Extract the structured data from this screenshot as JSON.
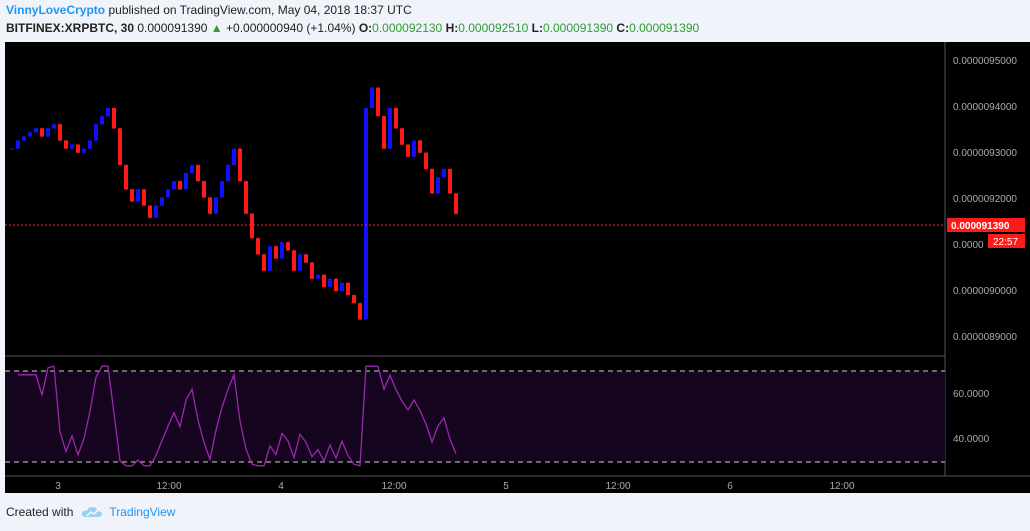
{
  "header": {
    "author": "VinnyLoveCrypto",
    "published_text": "published on TradingView.com, May 04, 2018 18:37 UTC"
  },
  "symbol": {
    "name": "BITFINEX:XRPBTC, 30",
    "last": "0.000091390",
    "change": "+0.000000940 (+1.04%)",
    "o_label": "O:",
    "o": "0.000092130",
    "h_label": "H:",
    "h": "0.000092510",
    "l_label": "L:",
    "l": "0.000091390",
    "c_label": "C:",
    "c": "0.000091390"
  },
  "price_scale": {
    "ticks": [
      "0.0000095000",
      "0.0000094000",
      "0.0000093000",
      "0.0000092000",
      "0.0000",
      "0.0000090000",
      "0.0000089000"
    ],
    "current_price": "0.000091390",
    "countdown": "22:57"
  },
  "rsi_scale": {
    "ticks": [
      "60.0000",
      "40.0000"
    ]
  },
  "time_axis": {
    "labels": [
      "3",
      "12:00",
      "4",
      "12:00",
      "5",
      "12:00",
      "6",
      "12:00"
    ]
  },
  "footer": {
    "created_with": "Created with",
    "brand": "TradingView"
  },
  "colors": {
    "up": "#1010ff",
    "down": "#ff1a1a",
    "rsi_line": "#9c27b0",
    "rsi_band": "#15051e",
    "price_line": "#ff2a2a"
  },
  "chart_data": {
    "type": "candlestick",
    "symbol": "BITFINEX:XRPBTC",
    "interval": "30",
    "y_range": [
      8.8e-06,
      9.55e-06
    ],
    "close_series": [
      9.3e-06,
      9.32e-06,
      9.33e-06,
      9.34e-06,
      9.35e-06,
      9.33e-06,
      9.35e-06,
      9.36e-06,
      9.32e-06,
      9.3e-06,
      9.31e-06,
      9.29e-06,
      9.3e-06,
      9.32e-06,
      9.36e-06,
      9.38e-06,
      9.4e-06,
      9.35e-06,
      9.26e-06,
      9.2e-06,
      9.17e-06,
      9.2e-06,
      9.16e-06,
      9.13e-06,
      9.16e-06,
      9.18e-06,
      9.2e-06,
      9.22e-06,
      9.2e-06,
      9.24e-06,
      9.26e-06,
      9.22e-06,
      9.18e-06,
      9.14e-06,
      9.18e-06,
      9.22e-06,
      9.26e-06,
      9.3e-06,
      9.22e-06,
      9.14e-06,
      9.08e-06,
      9.04e-06,
      9e-06,
      9.06e-06,
      9.03e-06,
      9.07e-06,
      9.05e-06,
      9e-06,
      9.04e-06,
      9.02e-06,
      8.98e-06,
      8.99e-06,
      8.96e-06,
      8.98e-06,
      8.95e-06,
      8.97e-06,
      8.94e-06,
      8.92e-06,
      8.88e-06,
      9.4e-06,
      9.45e-06,
      9.38e-06,
      9.3e-06,
      9.4e-06,
      9.35e-06,
      9.31e-06,
      9.28e-06,
      9.32e-06,
      9.29e-06,
      9.25e-06,
      9.19e-06,
      9.23e-06,
      9.25e-06,
      9.19e-06,
      9.14e-06
    ],
    "rsi": {
      "upper_band": 70,
      "lower_band": 30,
      "y_range": [
        27,
        75
      ]
    },
    "x_labels": [
      "3",
      "12:00",
      "4",
      "12:00",
      "5",
      "12:00",
      "6",
      "12:00"
    ]
  }
}
